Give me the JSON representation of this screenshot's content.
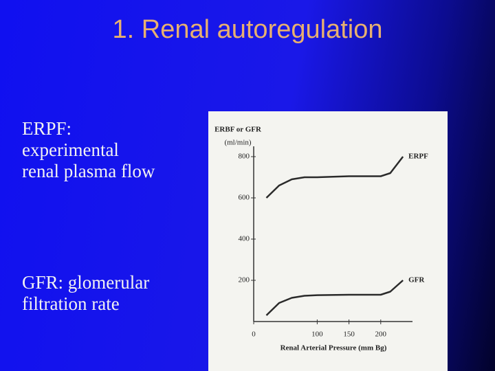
{
  "slide": {
    "title": "1. Renal autoregulation",
    "definitions": [
      "ERPF: experimental renal plasma flow",
      "GFR: glomerular filtration rate"
    ]
  },
  "chart_data": {
    "type": "line",
    "y_label": "ERBF or GFR",
    "y_unit": "(ml/min)",
    "x_label": "Renal Arterial Pressure (mm Bg)",
    "x": [
      20,
      40,
      60,
      80,
      100,
      150,
      200,
      215,
      235
    ],
    "series": [
      {
        "name": "ERPF",
        "color": "#2a2a2a",
        "values": [
          600,
          660,
          690,
          700,
          700,
          705,
          705,
          720,
          800
        ]
      },
      {
        "name": "GFR",
        "color": "#2a2a2a",
        "values": [
          30,
          90,
          115,
          125,
          128,
          130,
          130,
          145,
          200
        ]
      }
    ],
    "xlim": [
      0,
      250
    ],
    "xticks": [
      0,
      100,
      150,
      200
    ],
    "ylim": [
      0,
      850
    ],
    "yticks": [
      200,
      400,
      600,
      800
    ]
  }
}
